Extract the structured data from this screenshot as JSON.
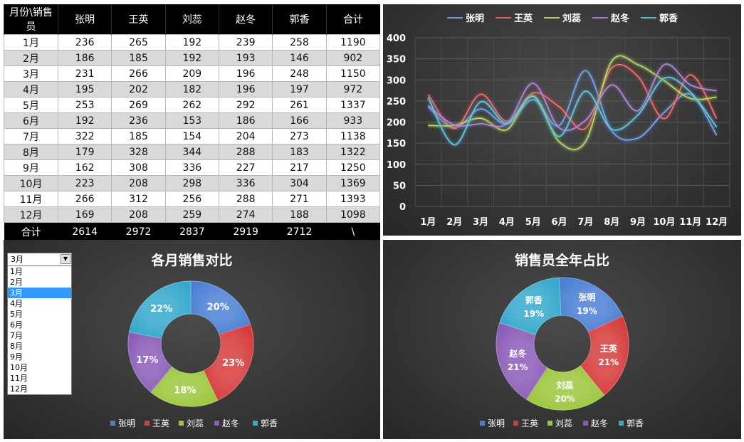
{
  "table": {
    "headers": [
      "月份\\销售员",
      "张明",
      "王英",
      "刘蕊",
      "赵冬",
      "郭香",
      "合计"
    ],
    "rows": [
      [
        "1月",
        "236",
        "265",
        "192",
        "239",
        "258",
        "1190"
      ],
      [
        "2月",
        "186",
        "185",
        "192",
        "193",
        "146",
        "902"
      ],
      [
        "3月",
        "231",
        "266",
        "209",
        "196",
        "248",
        "1150"
      ],
      [
        "4月",
        "195",
        "202",
        "182",
        "196",
        "197",
        "972"
      ],
      [
        "5月",
        "253",
        "269",
        "262",
        "292",
        "261",
        "1337"
      ],
      [
        "6月",
        "192",
        "236",
        "153",
        "186",
        "166",
        "933"
      ],
      [
        "7月",
        "322",
        "185",
        "154",
        "204",
        "273",
        "1138"
      ],
      [
        "8月",
        "179",
        "328",
        "344",
        "288",
        "183",
        "1322"
      ],
      [
        "9月",
        "162",
        "308",
        "336",
        "227",
        "217",
        "1250"
      ],
      [
        "10月",
        "223",
        "208",
        "298",
        "336",
        "304",
        "1369"
      ],
      [
        "11月",
        "266",
        "312",
        "256",
        "288",
        "271",
        "1393"
      ],
      [
        "12月",
        "169",
        "208",
        "259",
        "274",
        "188",
        "1098"
      ]
    ],
    "footer": [
      "合计",
      "2614",
      "2972",
      "2837",
      "2919",
      "2712",
      "\\"
    ]
  },
  "dropdown": {
    "selected": "3月",
    "options": [
      "1月",
      "2月",
      "3月",
      "4月",
      "5月",
      "6月",
      "7月",
      "8月",
      "9月",
      "10月",
      "11月",
      "12月"
    ]
  },
  "colors": {
    "张明": "#4a7fd4",
    "王英": "#d63a3a",
    "刘蕊": "#9bc63a",
    "赵冬": "#8a5cb8",
    "郭香": "#35a8cc"
  },
  "chart_data": [
    {
      "type": "line",
      "x": [
        "1月",
        "2月",
        "3月",
        "4月",
        "5月",
        "6月",
        "7月",
        "8月",
        "9月",
        "10月",
        "11月",
        "12月"
      ],
      "series": [
        {
          "name": "张明",
          "values": [
            236,
            186,
            231,
            195,
            253,
            192,
            322,
            179,
            162,
            223,
            266,
            169
          ]
        },
        {
          "name": "王英",
          "values": [
            265,
            185,
            266,
            202,
            269,
            236,
            185,
            328,
            308,
            208,
            312,
            208
          ]
        },
        {
          "name": "刘蕊",
          "values": [
            192,
            192,
            209,
            182,
            262,
            153,
            154,
            344,
            336,
            298,
            256,
            259
          ]
        },
        {
          "name": "赵冬",
          "values": [
            239,
            193,
            196,
            196,
            292,
            186,
            204,
            288,
            227,
            336,
            288,
            274
          ]
        },
        {
          "name": "郭香",
          "values": [
            258,
            146,
            248,
            197,
            261,
            166,
            273,
            183,
            217,
            304,
            271,
            188
          ]
        }
      ],
      "ylim": [
        0,
        400
      ],
      "yticks": [
        0,
        50,
        100,
        150,
        200,
        250,
        300,
        350,
        400
      ],
      "legend": "top",
      "grid": true
    },
    {
      "type": "pie",
      "title": "各月销售对比",
      "categories": [
        "张明",
        "王英",
        "刘蕊",
        "赵冬",
        "郭香"
      ],
      "values": [
        20,
        23,
        18,
        17,
        22
      ],
      "labels": [
        "20%",
        "23%",
        "18%",
        "17%",
        "22%"
      ],
      "legend": "bottom"
    },
    {
      "type": "pie",
      "title": "销售员全年占比",
      "categories": [
        "张明",
        "王英",
        "刘蕊",
        "赵冬",
        "郭香"
      ],
      "values": [
        19,
        21,
        20,
        21,
        19
      ],
      "labels": [
        "19%",
        "21%",
        "20%",
        "21%",
        "19%"
      ],
      "legend": "bottom"
    }
  ]
}
